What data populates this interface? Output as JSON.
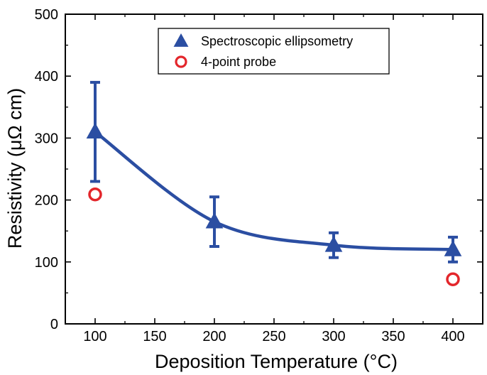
{
  "chart_data": {
    "type": "scatter",
    "xlabel": "Deposition Temperature (°C)",
    "ylabel": "Resistivity (μΩ cm)",
    "xlim": [
      75,
      425
    ],
    "ylim": [
      0,
      500
    ],
    "x_ticks": [
      100,
      150,
      200,
      250,
      300,
      350,
      400
    ],
    "y_ticks": [
      0,
      100,
      200,
      300,
      400,
      500
    ],
    "grid": false,
    "legend_position": "top-center",
    "series": [
      {
        "name": "Spectroscopic ellipsometry",
        "marker": "triangle",
        "color": "#2b4ea2",
        "x": [
          100,
          200,
          300,
          400
        ],
        "y": [
          310,
          165,
          127,
          120
        ],
        "error": [
          80,
          40,
          20,
          20
        ],
        "fit_curve": true
      },
      {
        "name": "4-point probe",
        "marker": "open-circle",
        "color": "#e3262b",
        "x": [
          100,
          400
        ],
        "y": [
          209,
          72
        ]
      }
    ]
  }
}
